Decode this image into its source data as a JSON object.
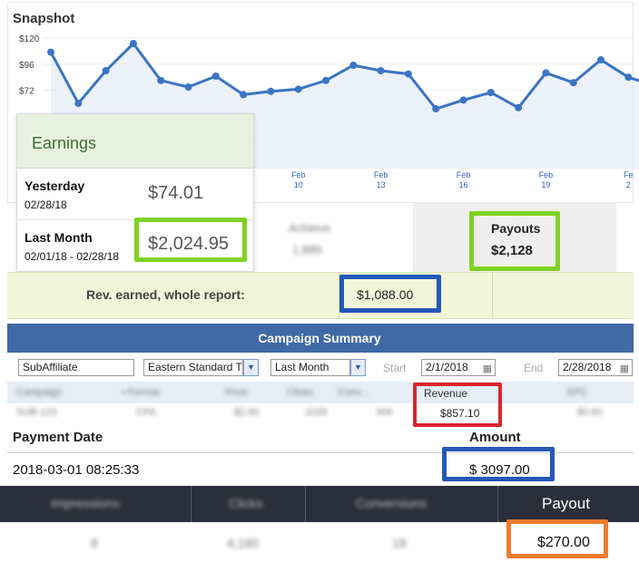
{
  "snapshot": {
    "title": "Snapshot",
    "y_ticks": [
      "$120",
      "$96",
      "$72"
    ],
    "x_ticks": [
      {
        "month": "Feb",
        "day": "10"
      },
      {
        "month": "Feb",
        "day": "13"
      },
      {
        "month": "Feb",
        "day": "16"
      },
      {
        "month": "Feb",
        "day": "19"
      },
      {
        "month": "Fe",
        "day": "2"
      }
    ],
    "line_color": "#3a74c4",
    "area_color": "#e8eef8"
  },
  "chart_data": {
    "type": "line",
    "title": "",
    "xlabel": "",
    "ylabel": "",
    "ylim": [
      0,
      130
    ],
    "y_format": "$",
    "grid": true,
    "series": [
      {
        "values": [
          107,
          60,
          90,
          115,
          81,
          75,
          85,
          68,
          71,
          73,
          81,
          95,
          90,
          87,
          55,
          63,
          70,
          56,
          88,
          79,
          100,
          84,
          76
        ]
      }
    ]
  },
  "earnings": {
    "title": "Earnings",
    "yesterday": {
      "label": "Yesterday",
      "date": "02/28/18",
      "value": "$74.01"
    },
    "last_month": {
      "label": "Last Month",
      "date": "02/01/18 - 02/28/18",
      "value": "$2,024.95"
    }
  },
  "payouts": {
    "label": "Payouts",
    "value": "$2,128"
  },
  "rev_earned": {
    "label": "Rev. earned, whole report:",
    "value": "$1,088.00"
  },
  "campaign_summary": {
    "title": "Campaign Summary",
    "subaffiliate": "SubAffiliate",
    "timezone": "Eastern Standard T",
    "period": "Last Month",
    "start_label": "Start",
    "start_date": "2/1/2018",
    "end_label": "End",
    "end_date": "2/28/2018",
    "revenue_label": "Revenue",
    "revenue_value": "$857.10"
  },
  "payment": {
    "date_label": "Payment Date",
    "amount_label": "Amount",
    "date_value": "2018-03-01 08:25:33",
    "amount_value": "$ 3097.00"
  },
  "bottom_stats": {
    "payout_label": "Payout",
    "payout_value": "$270.00"
  },
  "highlight_colors": {
    "green": "#7ed321",
    "blue": "#2458b8",
    "red": "#d9262c",
    "orange": "#ef7b2a"
  }
}
